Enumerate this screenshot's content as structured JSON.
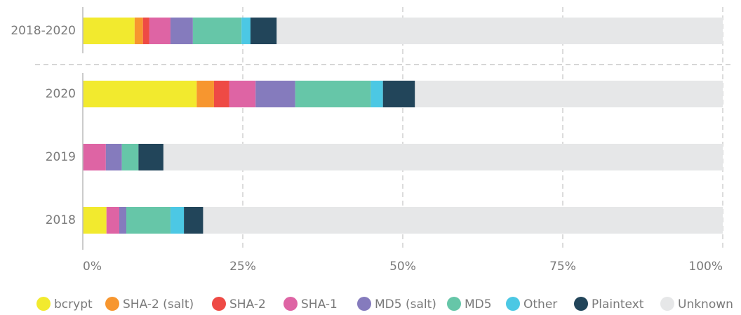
{
  "chart_data": {
    "type": "stacked-bar-horizontal",
    "categories": [
      "2018-2020",
      "2020",
      "2019",
      "2018"
    ],
    "series": [
      {
        "name": "bcrypt",
        "color": "#f2ea2e",
        "values": [
          8.1,
          17.8,
          0,
          3.7
        ]
      },
      {
        "name": "SHA-2 (salt)",
        "color": "#f7962f",
        "values": [
          1.3,
          2.7,
          0,
          0
        ]
      },
      {
        "name": "SHA-2",
        "color": "#ee4a45",
        "values": [
          1.0,
          2.4,
          0,
          0
        ]
      },
      {
        "name": "SHA-1",
        "color": "#de64a4",
        "values": [
          3.3,
          4.1,
          3.6,
          2.0
        ]
      },
      {
        "name": "MD5 (salt)",
        "color": "#857bbd",
        "values": [
          3.5,
          6.2,
          2.5,
          1.1
        ]
      },
      {
        "name": "MD5",
        "color": "#66c6a8",
        "values": [
          7.6,
          11.8,
          2.6,
          6.9
        ]
      },
      {
        "name": "Other",
        "color": "#4cc8e4",
        "values": [
          1.4,
          1.9,
          0,
          2.1
        ]
      },
      {
        "name": "Plaintext",
        "color": "#22455a",
        "values": [
          4.1,
          5.0,
          3.9,
          3.0
        ]
      },
      {
        "name": "Unknown",
        "color": "#e6e7e8",
        "values": [
          69.7,
          48.1,
          87.4,
          81.2
        ]
      }
    ],
    "xlim": [
      0,
      100
    ],
    "xticks": [
      {
        "value": 0,
        "label": "0%"
      },
      {
        "value": 25,
        "label": "25%"
      },
      {
        "value": 50,
        "label": "50%"
      },
      {
        "value": 75,
        "label": "75%"
      },
      {
        "value": 100,
        "label": "100%"
      }
    ],
    "grid": true,
    "legend": "bottom"
  }
}
